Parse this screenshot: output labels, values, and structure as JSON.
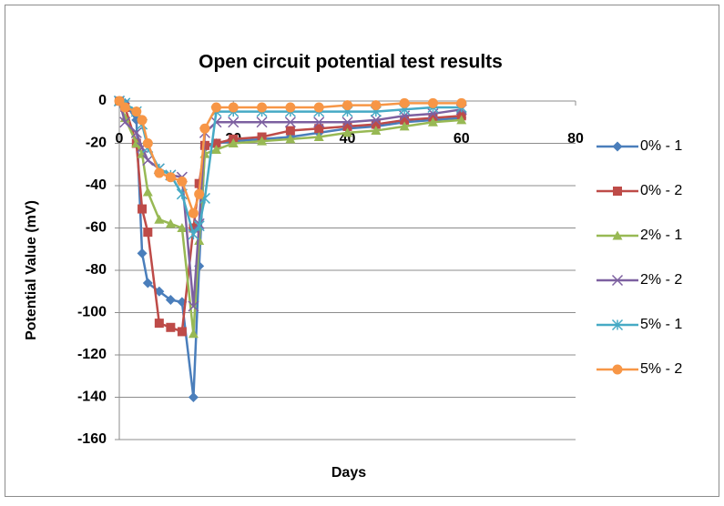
{
  "chart_data": {
    "type": "line",
    "title": "Open circuit potential test results",
    "x_label": "Days",
    "y_label": "Potential Value (mV)",
    "x": [
      0,
      1,
      3,
      4,
      5,
      7,
      9,
      11,
      13,
      14,
      15,
      17,
      20,
      25,
      30,
      35,
      40,
      45,
      50,
      55,
      60
    ],
    "xlim": [
      0,
      80
    ],
    "xticks": [
      0,
      20,
      40,
      60,
      80
    ],
    "ylim": [
      -160,
      0
    ],
    "yticks": [
      0,
      -20,
      -40,
      -60,
      -80,
      -100,
      -120,
      -140,
      -160
    ],
    "grid": true,
    "legend": "right",
    "series": [
      {
        "name": "0% - 1",
        "color": "#4a7ebb",
        "marker": "diamond",
        "values": [
          0,
          -1,
          -9,
          -72,
          -86,
          -90,
          -94,
          -95,
          -140,
          -78,
          -22,
          -20,
          -19,
          -18,
          -17,
          -15,
          -13,
          -12,
          -10,
          -9,
          -8
        ]
      },
      {
        "name": "0% - 2",
        "color": "#be4b48",
        "marker": "square",
        "values": [
          0,
          -3,
          -20,
          -51,
          -62,
          -105,
          -107,
          -109,
          -60,
          -39,
          -21,
          -20,
          -18,
          -17,
          -14,
          -13,
          -12,
          -11,
          -9,
          -8,
          -7
        ]
      },
      {
        "name": "2% - 1",
        "color": "#98b954",
        "marker": "triangle",
        "values": [
          0,
          -8,
          -20,
          -25,
          -43,
          -56,
          -58,
          -60,
          -110,
          -66,
          -25,
          -23,
          -20,
          -19,
          -18,
          -17,
          -15,
          -14,
          -12,
          -10,
          -9
        ]
      },
      {
        "name": "2% - 2",
        "color": "#7d60a0",
        "marker": "x",
        "values": [
          0,
          -10,
          -15,
          -22,
          -28,
          -32,
          -35,
          -36,
          -97,
          -58,
          -15,
          -10,
          -10,
          -10,
          -10,
          -10,
          -10,
          -9,
          -7,
          -6,
          -4
        ]
      },
      {
        "name": "5% - 1",
        "color": "#46aac5",
        "marker": "star",
        "values": [
          0,
          -1,
          -5,
          -11,
          -22,
          -32,
          -35,
          -44,
          -63,
          -59,
          -46,
          -5,
          -5,
          -5,
          -5,
          -5,
          -5,
          -5,
          -4,
          -3,
          -3
        ]
      },
      {
        "name": "5% - 2",
        "color": "#f79646",
        "marker": "circle",
        "values": [
          0,
          -3,
          -5,
          -9,
          -20,
          -34,
          -36,
          -38,
          -53,
          -44,
          -13,
          -3,
          -3,
          -3,
          -3,
          -3,
          -2,
          -2,
          -1,
          -1,
          -1
        ]
      }
    ]
  }
}
